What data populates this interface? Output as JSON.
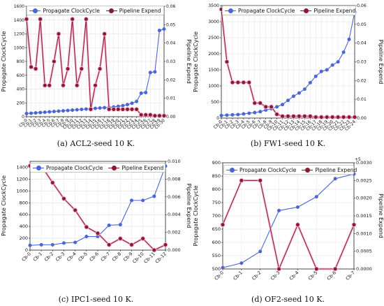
{
  "colors": {
    "clock": "#4a66d6",
    "pipeline": "#8b1a30",
    "pipeline_glow": "#f5b8d8"
  },
  "panels": [
    {
      "caption": "(a)  ACL2-seed 10 K.",
      "chart_data": {
        "type": "line",
        "categories": [
          "Cb-0",
          "Cb-1",
          "Cb-2",
          "Cb-3",
          "Cb-4",
          "Cb-5",
          "Cb-6",
          "Cb-7",
          "Cb-8",
          "Cb-9",
          "Cb-10",
          "Cb-11",
          "Cb-12",
          "Cb-13",
          "Cb-14",
          "Cb-15",
          "Cb-16",
          "Cb-17",
          "Cb-18",
          "Cb-19",
          "Cb-20",
          "Cb-21",
          "Cb-22",
          "Cb-23",
          "Cb-24",
          "Cb-25",
          "Cb-26",
          "Cb-27",
          "Cb-28",
          "Cb-29",
          "Cb-30"
        ],
        "category_labels": [
          "Cb-0",
          "Cb-1",
          "Cb-2",
          "Cb-3",
          "Cb-4",
          "Cb-5",
          "Cb-6",
          "Cb-7",
          "Cb-8",
          "Cb-9",
          "Cb-10",
          "Cb-11",
          "Cb-12",
          "Cb-13",
          "Cb-14",
          "Cb-15",
          "Cb-16",
          "Cb-17",
          "Cb-18",
          "Cb-19",
          "Cb-20",
          "Cb-21",
          "Cb-22",
          "Cb-23",
          "Cb-24",
          "Cb-25",
          "Cb-26",
          "Cb-27",
          "Cb-28",
          "Cb-29",
          "Cb-30"
        ],
        "series": [
          {
            "name": "Propagate ClockCycle",
            "axis": "left",
            "values": [
              45,
              50,
              55,
              60,
              65,
              70,
              75,
              80,
              85,
              90,
              95,
              100,
              105,
              110,
              115,
              120,
              125,
              130,
              135,
              140,
              150,
              160,
              175,
              195,
              220,
              340,
              350,
              640,
              650,
              1250,
              1270
            ]
          },
          {
            "name": "Pipeline Expend",
            "axis": "right",
            "values": [
              0.053,
              0.027,
              0.026,
              0.053,
              0.017,
              0.017,
              0.03,
              0.045,
              0.017,
              0.026,
              0.053,
              0.017,
              0.026,
              0.053,
              0.004,
              0.017,
              0.026,
              0.045,
              0.004,
              0.004,
              0.004,
              0.004,
              0.004,
              0.004,
              0.004,
              0.001,
              0.001,
              0.001,
              0.0005,
              0.0005,
              0.0005
            ]
          }
        ],
        "ylabel": "Propagate ClockCycle",
        "y2label": "Pipeline Expend",
        "ylim": [
          0,
          1600
        ],
        "yticks": [
          0,
          200,
          400,
          600,
          800,
          1000,
          1200,
          1400,
          1600
        ],
        "y2lim": [
          0,
          0.06
        ],
        "y2ticks": [
          "0.00",
          "0.01",
          "0.02",
          "0.03",
          "0.04",
          "0.05",
          "0.06"
        ],
        "legend": "top",
        "grid": true
      }
    },
    {
      "caption": "(b)  FW1-seed 10 K.",
      "chart_data": {
        "type": "line",
        "categories": [
          "Cb-0",
          "Cb-1",
          "Cb-2",
          "Cb-3",
          "Cb-4",
          "Cb-5",
          "Cb-6",
          "Cb-7",
          "Cb-8",
          "Cb-9",
          "Cb-10",
          "Cb-11",
          "Cb-12",
          "Cb-13",
          "Cb-14",
          "Cb-15",
          "Cb-16",
          "Cb-17",
          "Cb-18",
          "Cb-19",
          "Cb-20",
          "Cb-21",
          "Cb-22",
          "Cb-23",
          "Cb-24"
        ],
        "category_labels": [
          "Cb-0",
          "Cb-1",
          "Cb-2",
          "Cb-3",
          "Cb-4",
          "Cb-5",
          "Cb-6",
          "Cb-7",
          "Cb-8",
          "Cb-9",
          "Cb-10",
          "Cb-11",
          "Cb-12",
          "Cb-13",
          "Cb-14",
          "Cb-15",
          "Cb-16",
          "Cb-17",
          "Cb-18",
          "Cb-19",
          "Cb-20",
          "Cb-21",
          "Cb-22",
          "Cb-23",
          "Cb-24"
        ],
        "series": [
          {
            "name": "Propagate ClockCycle",
            "axis": "left",
            "values": [
              80,
              90,
              100,
              110,
              130,
              150,
              170,
              200,
              250,
              290,
              350,
              420,
              550,
              680,
              780,
              900,
              1100,
              1300,
              1450,
              1500,
              1650,
              1750,
              2050,
              2450,
              3300
            ]
          },
          {
            "name": "Pipeline Expend",
            "axis": "right",
            "values": [
              0.058,
              0.03,
              0.019,
              0.019,
              0.019,
              0.019,
              0.008,
              0.008,
              0.006,
              0.006,
              0.002,
              0.001,
              0.001,
              0.001,
              0.001,
              0.001,
              0.001,
              0.0005,
              0.0005,
              0.0005,
              0.0005,
              0.0005,
              0.0005,
              0.0005,
              0.0005
            ]
          }
        ],
        "ylabel": "Propagate ClockCycle",
        "y2label": "Pipeline Expend",
        "ylim": [
          0,
          3500
        ],
        "yticks": [
          0,
          500,
          1000,
          1500,
          2000,
          2500,
          3000,
          3500
        ],
        "y2lim": [
          0,
          0.06
        ],
        "y2ticks": [
          "0.00",
          "0.01",
          "0.02",
          "0.03",
          "0.04",
          "0.05",
          "0.06"
        ],
        "legend": "top",
        "grid": true
      }
    },
    {
      "caption": "(c)  IPC1-seed 10 K.",
      "chart_data": {
        "type": "line",
        "categories": [
          "Cb-0",
          "Cb-1",
          "Cb-2",
          "Cb-3",
          "Cb-4",
          "Cb-5",
          "Cb-6",
          "Cb-7",
          "Cb-8",
          "Cb-9",
          "Cb-10",
          "Cb-11",
          "Cb-12"
        ],
        "category_labels": [
          "Cb-0",
          "Cb-1",
          "Cb-2",
          "Cb-3",
          "Cb-4",
          "Cb-5",
          "Cb-6",
          "Cb-7",
          "Cb-8",
          "Cb-9",
          "Cb-10",
          "Cb-11",
          "Cb-12"
        ],
        "series": [
          {
            "name": "Propagate ClockCycle",
            "axis": "left",
            "values": [
              80,
              90,
              90,
              120,
              130,
              230,
              230,
              420,
              430,
              840,
              840,
              910,
              1420
            ]
          },
          {
            "name": "Pipeline Expend",
            "axis": "right",
            "values": [
              0.0095,
              0.0095,
              0.0076,
              0.0058,
              0.0045,
              0.0026,
              0.0019,
              0.0006,
              0.0013,
              0.0006,
              0.0013,
              0.0,
              0.0006
            ]
          }
        ],
        "ylabel": "Propagate ClockCycle",
        "y2label": "Pipeline Expend",
        "ylim": [
          0,
          1500
        ],
        "yticks": [
          0,
          200,
          400,
          600,
          800,
          1000,
          1200,
          1400
        ],
        "y2lim": [
          0,
          0.01
        ],
        "y2ticks": [
          "0.000",
          "0.002",
          "0.004",
          "0.006",
          "0.008",
          "0.010"
        ],
        "legend": "top",
        "grid": true
      }
    },
    {
      "caption": "(d)  OF2-seed 10 K.",
      "chart_data": {
        "type": "line",
        "categories": [
          "Cb-0",
          "Cb-1",
          "Cb-2",
          "Cb-3",
          "Cb-4",
          "Cb-5",
          "Cb-6",
          "Cb-7"
        ],
        "category_labels": [
          "Cb-0",
          "Cb-1",
          "Cb-2",
          "Cb-3",
          "Cb-4",
          "Cb-5",
          "Cb-6",
          "Cb-7"
        ],
        "series": [
          {
            "name": "Propagate ClockCycle",
            "axis": "left",
            "values": [
              505,
              522,
              566,
              720,
              733,
              772,
              840,
              858
            ]
          },
          {
            "name": "Pipeline Expend",
            "axis": "right",
            "values": [
              0.00125,
              0.0025,
              0.0025,
              0.0,
              0.00125,
              0.0,
              0.0,
              0.00125
            ]
          }
        ],
        "ylabel": "Propagate ClockCycle",
        "y2label": "Pipeline Expend",
        "ylim": [
          500,
          900
        ],
        "yticks": [
          500,
          550,
          600,
          650,
          700,
          750,
          800,
          850,
          900
        ],
        "y2lim": [
          0,
          0.003
        ],
        "y2ticks": [
          "0.0000",
          "0.0005",
          "0.0010",
          "0.0015",
          "0.0020",
          "0.0025",
          "0.0030"
        ],
        "y2_offset_label": "+5",
        "legend": "top",
        "grid": true
      }
    }
  ]
}
